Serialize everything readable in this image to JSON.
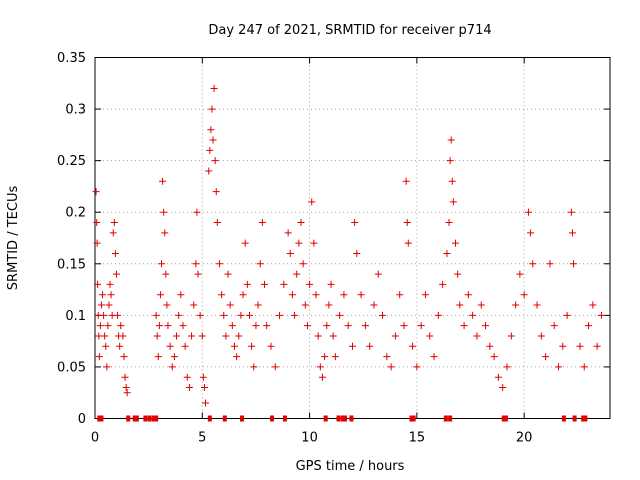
{
  "chart_data": {
    "type": "scatter",
    "title": "Day 247 of 2021, SRMTID for receiver p714",
    "xlabel": "GPS time / hours",
    "ylabel": "SRMTID / TECUs",
    "xlim": [
      0,
      24
    ],
    "ylim": [
      0,
      0.35
    ],
    "xticks": [
      0,
      5,
      10,
      15,
      20
    ],
    "yticks": [
      0,
      0.05,
      0.1,
      0.15,
      0.2,
      0.25,
      0.3,
      0.35
    ],
    "ytick_labels": [
      "0",
      "0.05",
      "0.1",
      "0.15",
      "0.2",
      "0.25",
      "0.3",
      "0.35"
    ],
    "grid": true,
    "marker": "+",
    "color": "#e00000",
    "series": [
      {
        "name": "SRMTID",
        "points": [
          [
            0.05,
            0.22
          ],
          [
            0.08,
            0.19
          ],
          [
            0.1,
            0.17
          ],
          [
            0.12,
            0.13
          ],
          [
            0.15,
            0.1
          ],
          [
            0.18,
            0.08
          ],
          [
            0.2,
            0.06
          ],
          [
            0.25,
            0.09
          ],
          [
            0.3,
            0.11
          ],
          [
            0.35,
            0.12
          ],
          [
            0.4,
            0.1
          ],
          [
            0.45,
            0.08
          ],
          [
            0.5,
            0.07
          ],
          [
            0.55,
            0.05
          ],
          [
            0.6,
            0.09
          ],
          [
            0.65,
            0.11
          ],
          [
            0.7,
            0.13
          ],
          [
            0.75,
            0.12
          ],
          [
            0.8,
            0.1
          ],
          [
            0.85,
            0.18
          ],
          [
            0.9,
            0.19
          ],
          [
            0.95,
            0.16
          ],
          [
            1.0,
            0.14
          ],
          [
            1.05,
            0.1
          ],
          [
            1.1,
            0.08
          ],
          [
            1.15,
            0.07
          ],
          [
            1.2,
            0.09
          ],
          [
            1.3,
            0.08
          ],
          [
            1.35,
            0.06
          ],
          [
            1.4,
            0.04
          ],
          [
            1.45,
            0.03
          ],
          [
            1.5,
            0.025
          ],
          [
            2.85,
            0.1
          ],
          [
            2.9,
            0.08
          ],
          [
            2.95,
            0.06
          ],
          [
            3.0,
            0.09
          ],
          [
            3.05,
            0.12
          ],
          [
            3.1,
            0.15
          ],
          [
            3.15,
            0.23
          ],
          [
            3.2,
            0.2
          ],
          [
            3.25,
            0.18
          ],
          [
            3.3,
            0.14
          ],
          [
            3.35,
            0.11
          ],
          [
            3.4,
            0.09
          ],
          [
            3.5,
            0.07
          ],
          [
            3.6,
            0.05
          ],
          [
            3.7,
            0.06
          ],
          [
            3.8,
            0.08
          ],
          [
            3.9,
            0.1
          ],
          [
            4.0,
            0.12
          ],
          [
            4.1,
            0.09
          ],
          [
            4.2,
            0.07
          ],
          [
            4.3,
            0.04
          ],
          [
            4.4,
            0.03
          ],
          [
            4.5,
            0.08
          ],
          [
            4.6,
            0.11
          ],
          [
            4.7,
            0.15
          ],
          [
            4.75,
            0.2
          ],
          [
            4.8,
            0.14
          ],
          [
            4.9,
            0.1
          ],
          [
            5.0,
            0.08
          ],
          [
            5.05,
            0.04
          ],
          [
            5.1,
            0.03
          ],
          [
            5.15,
            0.015
          ],
          [
            5.3,
            0.24
          ],
          [
            5.35,
            0.26
          ],
          [
            5.4,
            0.28
          ],
          [
            5.45,
            0.3
          ],
          [
            5.5,
            0.27
          ],
          [
            5.55,
            0.32
          ],
          [
            5.6,
            0.25
          ],
          [
            5.65,
            0.22
          ],
          [
            5.7,
            0.19
          ],
          [
            5.8,
            0.15
          ],
          [
            5.9,
            0.12
          ],
          [
            6.0,
            0.1
          ],
          [
            6.1,
            0.08
          ],
          [
            6.2,
            0.14
          ],
          [
            6.3,
            0.11
          ],
          [
            6.4,
            0.09
          ],
          [
            6.5,
            0.07
          ],
          [
            6.6,
            0.06
          ],
          [
            6.7,
            0.08
          ],
          [
            6.8,
            0.1
          ],
          [
            6.9,
            0.12
          ],
          [
            7.0,
            0.17
          ],
          [
            7.1,
            0.13
          ],
          [
            7.2,
            0.1
          ],
          [
            7.3,
            0.07
          ],
          [
            7.4,
            0.05
          ],
          [
            7.5,
            0.09
          ],
          [
            7.6,
            0.11
          ],
          [
            7.7,
            0.15
          ],
          [
            7.8,
            0.19
          ],
          [
            7.9,
            0.13
          ],
          [
            8.0,
            0.09
          ],
          [
            8.2,
            0.07
          ],
          [
            8.4,
            0.05
          ],
          [
            8.6,
            0.1
          ],
          [
            8.8,
            0.13
          ],
          [
            9.0,
            0.18
          ],
          [
            9.1,
            0.16
          ],
          [
            9.2,
            0.12
          ],
          [
            9.3,
            0.1
          ],
          [
            9.4,
            0.14
          ],
          [
            9.5,
            0.17
          ],
          [
            9.6,
            0.19
          ],
          [
            9.7,
            0.15
          ],
          [
            9.8,
            0.11
          ],
          [
            9.9,
            0.09
          ],
          [
            10.0,
            0.13
          ],
          [
            10.1,
            0.21
          ],
          [
            10.2,
            0.17
          ],
          [
            10.3,
            0.12
          ],
          [
            10.4,
            0.08
          ],
          [
            10.5,
            0.05
          ],
          [
            10.6,
            0.04
          ],
          [
            10.7,
            0.06
          ],
          [
            10.8,
            0.09
          ],
          [
            10.9,
            0.11
          ],
          [
            11.0,
            0.13
          ],
          [
            11.1,
            0.08
          ],
          [
            11.2,
            0.06
          ],
          [
            11.4,
            0.1
          ],
          [
            11.6,
            0.12
          ],
          [
            11.8,
            0.09
          ],
          [
            12.0,
            0.07
          ],
          [
            12.1,
            0.19
          ],
          [
            12.2,
            0.16
          ],
          [
            12.4,
            0.12
          ],
          [
            12.6,
            0.09
          ],
          [
            12.8,
            0.07
          ],
          [
            13.0,
            0.11
          ],
          [
            13.2,
            0.14
          ],
          [
            13.4,
            0.1
          ],
          [
            13.6,
            0.06
          ],
          [
            13.8,
            0.05
          ],
          [
            14.0,
            0.08
          ],
          [
            14.2,
            0.12
          ],
          [
            14.4,
            0.09
          ],
          [
            14.5,
            0.23
          ],
          [
            14.55,
            0.19
          ],
          [
            14.6,
            0.17
          ],
          [
            14.8,
            0.07
          ],
          [
            15.0,
            0.05
          ],
          [
            15.2,
            0.09
          ],
          [
            15.4,
            0.12
          ],
          [
            15.6,
            0.08
          ],
          [
            15.8,
            0.06
          ],
          [
            16.0,
            0.1
          ],
          [
            16.2,
            0.13
          ],
          [
            16.4,
            0.16
          ],
          [
            16.5,
            0.19
          ],
          [
            16.55,
            0.25
          ],
          [
            16.6,
            0.27
          ],
          [
            16.65,
            0.23
          ],
          [
            16.7,
            0.21
          ],
          [
            16.8,
            0.17
          ],
          [
            16.9,
            0.14
          ],
          [
            17.0,
            0.11
          ],
          [
            17.2,
            0.09
          ],
          [
            17.4,
            0.12
          ],
          [
            17.6,
            0.1
          ],
          [
            17.8,
            0.08
          ],
          [
            18.0,
            0.11
          ],
          [
            18.2,
            0.09
          ],
          [
            18.4,
            0.07
          ],
          [
            18.6,
            0.06
          ],
          [
            18.8,
            0.04
          ],
          [
            19.0,
            0.03
          ],
          [
            19.2,
            0.05
          ],
          [
            19.4,
            0.08
          ],
          [
            19.6,
            0.11
          ],
          [
            19.8,
            0.14
          ],
          [
            20.0,
            0.12
          ],
          [
            20.2,
            0.2
          ],
          [
            20.3,
            0.18
          ],
          [
            20.4,
            0.15
          ],
          [
            20.6,
            0.11
          ],
          [
            20.8,
            0.08
          ],
          [
            21.0,
            0.06
          ],
          [
            21.2,
            0.15
          ],
          [
            21.4,
            0.09
          ],
          [
            21.6,
            0.05
          ],
          [
            21.8,
            0.07
          ],
          [
            22.0,
            0.1
          ],
          [
            22.2,
            0.2
          ],
          [
            22.25,
            0.18
          ],
          [
            22.3,
            0.15
          ],
          [
            22.6,
            0.07
          ],
          [
            22.8,
            0.05
          ],
          [
            23.0,
            0.09
          ],
          [
            23.2,
            0.11
          ],
          [
            23.4,
            0.07
          ],
          [
            23.6,
            0.1
          ]
        ]
      }
    ],
    "gap_markers_x": [
      0.2,
      0.3,
      1.55,
      1.85,
      1.95,
      2.35,
      2.55,
      2.75,
      2.85,
      5.35,
      6.05,
      6.85,
      8.25,
      8.85,
      10.75,
      11.35,
      11.55,
      11.65,
      11.95,
      14.75,
      14.85,
      16.35,
      16.55,
      19.05,
      19.15,
      21.85,
      22.35,
      22.75,
      22.85
    ]
  }
}
